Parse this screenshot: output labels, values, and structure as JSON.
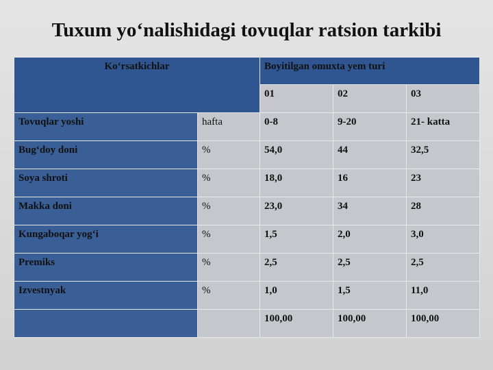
{
  "title": "Tuxum yo‘nalishidagi tovuqlar ratsion tarkibi",
  "table": {
    "header": {
      "indicator": "Ko‘rsatkichlar",
      "group": "Boyitilgan omuxta yem turi",
      "types": [
        "01",
        "02",
        "03"
      ]
    },
    "rows": [
      {
        "label": "Tovuqlar yoshi",
        "unit": "hafta",
        "values": [
          "0-8",
          "9-20",
          "21- katta"
        ]
      },
      {
        "label": "Bug‘doy doni",
        "unit": "%",
        "values": [
          "54,0",
          "44",
          "32,5"
        ]
      },
      {
        "label": "Soya shroti",
        "unit": "%",
        "values": [
          "18,0",
          "16",
          "23"
        ]
      },
      {
        "label": "Makka doni",
        "unit": "%",
        "values": [
          "23,0",
          "34",
          "28"
        ]
      },
      {
        "label": "Kungaboqar yog‘i",
        "unit": "%",
        "values": [
          "1,5",
          "2,0",
          "3,0"
        ]
      },
      {
        "label": "Premiks",
        "unit": "%",
        "values": [
          "2,5",
          "2,5",
          "2,5"
        ]
      },
      {
        "label": "Izvestnyak",
        "unit": "%",
        "values": [
          "1,0",
          "1,5",
          "11,0"
        ]
      },
      {
        "values": [
          "100,00",
          "100,00",
          "100,00"
        ]
      }
    ]
  }
}
